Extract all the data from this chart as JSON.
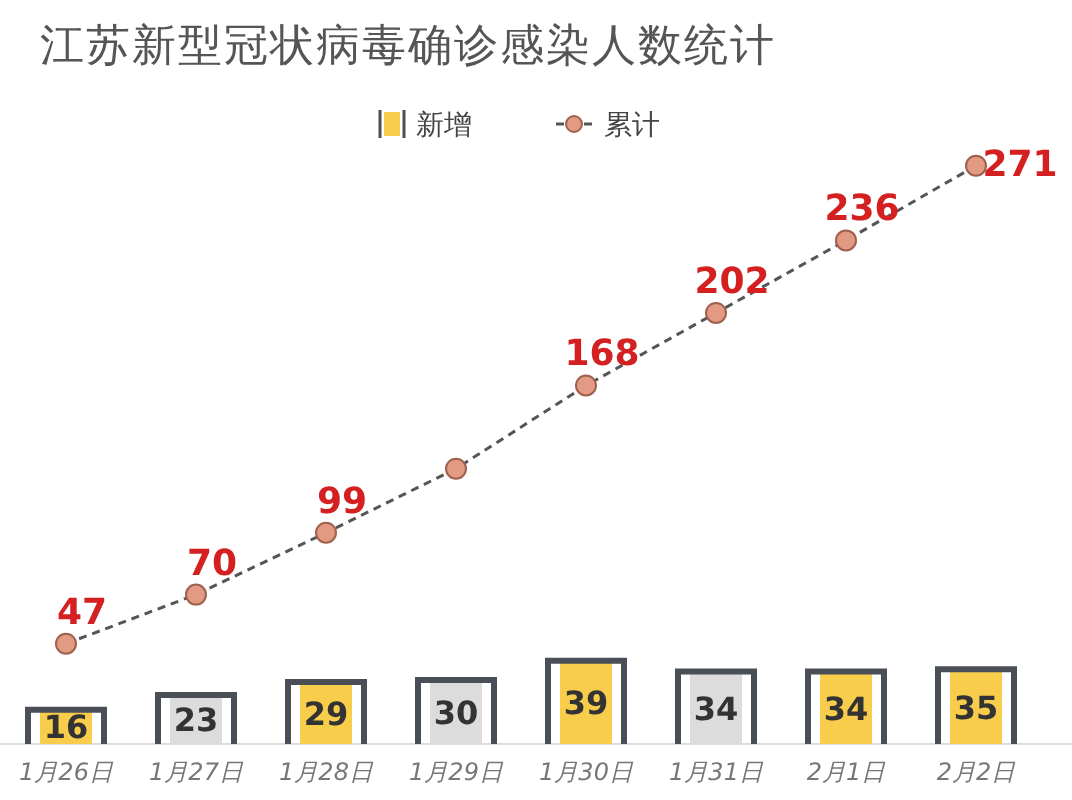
{
  "chart_data": {
    "type": "bar",
    "title": "江苏新型冠状病毒确诊感染人数统计",
    "categories": [
      "1月26日",
      "1月27日",
      "1月28日",
      "1月29日",
      "1月30日",
      "1月31日",
      "2月1日",
      "2月2日"
    ],
    "series": [
      {
        "name": "新增",
        "colors": [
          "#f8cd4c",
          "#dcdcdc",
          "#f8cd4c",
          "#dcdcdc",
          "#f8cd4c",
          "#dcdcdc",
          "#f8cd4c",
          "#f8cd4c"
        ],
        "values": [
          16,
          23,
          29,
          30,
          39,
          34,
          34,
          35
        ],
        "value_labels": [
          "16",
          "23",
          "29",
          "30",
          "39",
          "34",
          "34",
          "35"
        ]
      },
      {
        "name": "累计",
        "type": "line",
        "color": "#e39a82",
        "marker": "circle",
        "line_style": "dashed",
        "values": [
          47,
          70,
          99,
          129,
          168,
          202,
          236,
          271
        ],
        "value_labels": [
          "47",
          "70",
          "99",
          null,
          "168",
          "202",
          "236",
          "271"
        ]
      }
    ],
    "legend": "top"
  }
}
